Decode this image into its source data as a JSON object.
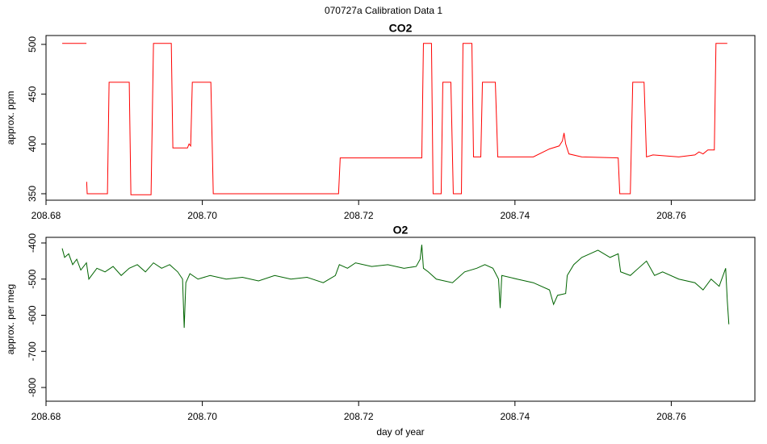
{
  "title": "070727a   Calibration Data 1",
  "chart_data": [
    {
      "type": "line",
      "title": "CO2",
      "ylabel": "approx. ppm",
      "color": "#ff0000",
      "xlim": [
        208.68,
        208.7707
      ],
      "ylim": [
        343.5,
        508.9
      ],
      "xticks": [
        208.68,
        {
          "value": 208.7,
          "label": "208.70"
        },
        208.72,
        208.74,
        208.76
      ],
      "yticks": [
        350,
        400,
        450,
        500
      ],
      "x": [
        208.68207,
        208.68517,
        208.68518,
        208.6852,
        208.68527,
        208.68786,
        208.68807,
        208.69065,
        208.69086,
        208.69344,
        208.69375,
        208.69603,
        208.69623,
        208.6981,
        208.6983,
        208.69851,
        208.69872,
        208.70109,
        208.7014,
        208.71743,
        208.71764,
        208.72808,
        208.72829,
        208.72932,
        208.72953,
        208.73056,
        208.73077,
        208.7318,
        208.73211,
        208.73315,
        208.73335,
        208.73449,
        208.7347,
        208.73563,
        208.73584,
        208.73749,
        208.7378,
        208.74235,
        208.74442,
        208.74566,
        208.74607,
        208.74628,
        208.74649,
        208.7469,
        208.74855,
        208.75321,
        208.75341,
        208.75476,
        208.75507,
        208.75652,
        208.75683,
        208.75766,
        208.76096,
        208.76303,
        208.76355,
        208.76407,
        208.76468,
        208.76551,
        208.76572,
        208.76717
      ],
      "values": [
        501,
        501,
        null,
        362,
        350,
        350,
        462,
        462,
        349,
        349,
        501,
        501,
        396,
        396,
        400,
        398,
        462,
        462,
        350,
        350,
        386,
        386,
        501,
        501,
        350,
        350,
        462,
        462,
        350,
        350,
        501,
        501,
        387,
        387,
        462,
        462,
        387,
        387,
        395,
        398,
        403,
        411,
        400,
        390,
        387,
        386,
        350,
        350,
        462,
        462,
        387,
        389,
        387,
        389,
        392,
        390,
        394,
        394,
        501,
        501
      ]
    },
    {
      "type": "line",
      "title": "O2",
      "ylabel": "approx. per meg",
      "xlabel": "day of year",
      "color": "#006400",
      "xlim": [
        208.68,
        208.7707
      ],
      "ylim": [
        -838,
        -384.4
      ],
      "xticks": [
        208.68,
        {
          "value": 208.7,
          "label": "208.70"
        },
        208.72,
        208.74,
        208.76
      ],
      "yticks": [
        -400,
        -500,
        -600,
        -700,
        -800
      ],
      "x": [
        208.68207,
        208.68238,
        208.6829,
        208.68341,
        208.68393,
        208.68445,
        208.68517,
        208.68548,
        208.68651,
        208.68755,
        208.68858,
        208.68962,
        208.69065,
        208.69168,
        208.69272,
        208.69375,
        208.69479,
        208.69582,
        208.69685,
        208.69747,
        208.69768,
        208.69789,
        208.69841,
        208.69944,
        208.70099,
        208.70306,
        208.70513,
        208.70719,
        208.70926,
        208.71133,
        208.7134,
        208.71547,
        208.71702,
        208.71753,
        208.71857,
        208.7196,
        208.72167,
        208.72374,
        208.72581,
        208.72736,
        208.72787,
        208.72808,
        208.72829,
        208.72891,
        208.72994,
        208.73201,
        208.73356,
        208.73511,
        208.73615,
        208.73718,
        208.7379,
        208.73811,
        208.73832,
        208.74028,
        208.74235,
        208.74442,
        208.74494,
        208.74545,
        208.74649,
        208.74669,
        208.74752,
        208.74855,
        208.74959,
        208.75062,
        208.75217,
        208.75321,
        208.75352,
        208.75476,
        208.75579,
        208.75683,
        208.75786,
        208.75889,
        208.76096,
        208.76303,
        208.76407,
        208.7651,
        208.76613,
        208.76696,
        208.76717,
        208.76737
      ],
      "values": [
        -415,
        -440,
        -430,
        -460,
        -445,
        -475,
        -455,
        -500,
        -470,
        -480,
        -465,
        -490,
        -470,
        -460,
        -480,
        -455,
        -470,
        -460,
        -480,
        -500,
        -635,
        -510,
        -485,
        -500,
        -490,
        -500,
        -495,
        -505,
        -490,
        -500,
        -495,
        -510,
        -490,
        -460,
        -470,
        -455,
        -465,
        -460,
        -470,
        -465,
        -445,
        -405,
        -470,
        -480,
        -500,
        -510,
        -480,
        -470,
        -460,
        -470,
        -500,
        -580,
        -490,
        -500,
        -510,
        -530,
        -570,
        -545,
        -540,
        -490,
        -460,
        -440,
        -430,
        -420,
        -440,
        -430,
        -480,
        -490,
        -470,
        -450,
        -490,
        -480,
        -500,
        -510,
        -530,
        -500,
        -520,
        -470,
        -560,
        -625
      ]
    }
  ]
}
